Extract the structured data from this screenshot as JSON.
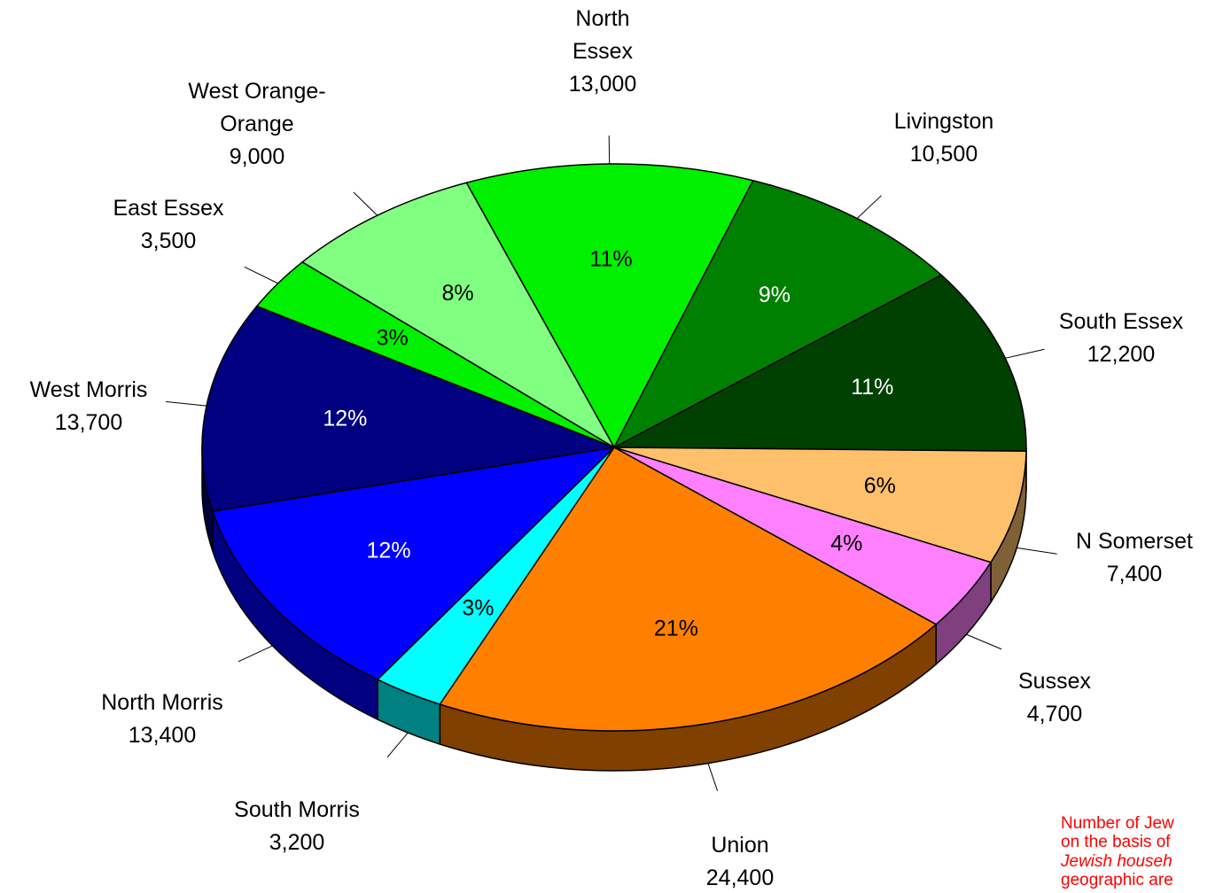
{
  "chart_data": {
    "type": "pie3d",
    "categories": [
      [
        "North",
        "Essex"
      ],
      [
        "Livingston"
      ],
      [
        "South Essex"
      ],
      [
        "N Somerset"
      ],
      [
        "Sussex"
      ],
      [
        "Union"
      ],
      [
        "South Morris"
      ],
      [
        "North Morris"
      ],
      [
        "West Morris"
      ],
      [
        "East Essex"
      ],
      [
        "West Orange-",
        "Orange"
      ]
    ],
    "values": [
      13000,
      10500,
      12200,
      7400,
      4700,
      24400,
      3200,
      13400,
      13700,
      3500,
      9000
    ],
    "value_labels": [
      "13,000",
      "10,500",
      "12,200",
      "7,400",
      "4,700",
      "24,400",
      "3,200",
      "13,400",
      "13,700",
      "3,500",
      "9,000"
    ],
    "percent_labels": [
      "11%",
      "9%",
      "11%",
      "6%",
      "4%",
      "21%",
      "3%",
      "12%",
      "12%",
      "3%",
      "8%"
    ],
    "colors": [
      "#00f000",
      "#008000",
      "#004000",
      "#ffc06c",
      "#ff80ff",
      "#ff8000",
      "#00ffff",
      "#0000ff",
      "#000080",
      "#00f000",
      "#80ff80"
    ],
    "annotation": [
      "Number of Jew",
      "on the basis of",
      "Jewish househ",
      "geographic are"
    ]
  }
}
